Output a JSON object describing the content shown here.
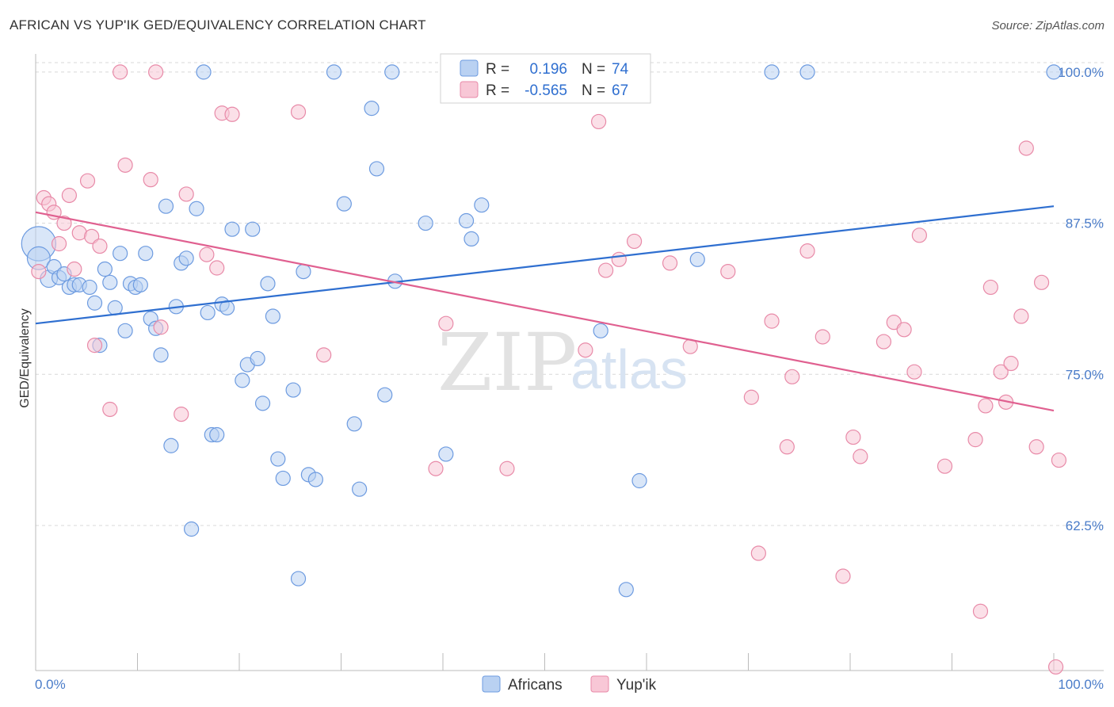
{
  "title": "AFRICAN VS YUP'IK GED/EQUIVALENCY CORRELATION CHART",
  "source": "Source: ZipAtlas.com",
  "watermark": {
    "zip": "ZIP",
    "atlas": "atlas"
  },
  "colors": {
    "africans_fill": "#b9d1f2",
    "africans_stroke": "#6d9be0",
    "africans_line": "#2f6fd0",
    "yupik_fill": "#f8c7d6",
    "yupik_stroke": "#e88aa8",
    "yupik_line": "#e06090",
    "grid": "#d8d8d8",
    "axis_label": "#4a7cc9"
  },
  "legend": {
    "rows": [
      {
        "r_label": "R =",
        "r_value": "0.196",
        "n_label": "N =",
        "n_value": "74"
      },
      {
        "r_label": "R =",
        "r_value": "-0.565",
        "n_label": "N =",
        "n_value": "67"
      }
    ]
  },
  "chart_data": {
    "type": "scatter",
    "ylabel": "GED/Equivalency",
    "xlim": [
      0,
      100
    ],
    "ylim": [
      50.5,
      101.5
    ],
    "x_tick_labels": [
      "0.0%",
      "100.0%"
    ],
    "y_ticks": [
      62.5,
      75.0,
      87.5,
      100.0
    ],
    "y_tick_labels": [
      "62.5%",
      "75.0%",
      "87.5%",
      "100.0%"
    ],
    "legend_position": "bottom",
    "grid": true,
    "series": [
      {
        "name": "Africans",
        "trend": {
          "x": [
            0,
            100
          ],
          "y": [
            79.2,
            88.9
          ]
        },
        "points": [
          [
            0.3,
            85.8,
            2.4
          ],
          [
            0.3,
            84.6,
            1.6
          ],
          [
            1.3,
            82.9,
            1.2
          ],
          [
            1.8,
            83.9,
            1
          ],
          [
            2.3,
            83.0,
            1
          ],
          [
            2.8,
            83.3,
            1
          ],
          [
            3.3,
            82.2,
            1
          ],
          [
            3.8,
            82.4,
            1
          ],
          [
            4.3,
            82.4,
            1
          ],
          [
            5.3,
            82.2,
            1
          ],
          [
            5.8,
            80.9,
            1
          ],
          [
            6.3,
            77.4,
            1
          ],
          [
            6.8,
            83.7,
            1
          ],
          [
            7.3,
            82.6,
            1
          ],
          [
            7.8,
            80.5,
            1
          ],
          [
            8.3,
            85.0,
            1
          ],
          [
            8.8,
            78.6,
            1
          ],
          [
            9.3,
            82.5,
            1
          ],
          [
            9.8,
            82.2,
            1
          ],
          [
            10.3,
            82.4,
            1
          ],
          [
            10.8,
            85.0,
            1
          ],
          [
            11.3,
            79.6,
            1
          ],
          [
            11.8,
            78.8,
            1
          ],
          [
            12.3,
            76.6,
            1
          ],
          [
            12.8,
            88.9,
            1
          ],
          [
            13.3,
            69.1,
            1
          ],
          [
            13.8,
            80.6,
            1
          ],
          [
            14.3,
            84.2,
            1
          ],
          [
            14.8,
            84.6,
            1
          ],
          [
            15.3,
            62.2,
            1
          ],
          [
            15.8,
            88.7,
            1
          ],
          [
            16.5,
            100.0,
            1
          ],
          [
            16.9,
            80.1,
            1
          ],
          [
            17.3,
            70.0,
            1
          ],
          [
            17.8,
            70.0,
            1
          ],
          [
            18.3,
            80.8,
            1
          ],
          [
            18.8,
            80.5,
            1
          ],
          [
            19.3,
            87.0,
            1
          ],
          [
            20.3,
            74.5,
            1
          ],
          [
            20.8,
            75.8,
            1
          ],
          [
            21.3,
            87.0,
            1
          ],
          [
            21.8,
            76.3,
            1
          ],
          [
            22.3,
            72.6,
            1
          ],
          [
            22.8,
            82.5,
            1
          ],
          [
            23.3,
            79.8,
            1
          ],
          [
            23.8,
            68.0,
            1
          ],
          [
            24.3,
            66.4,
            1
          ],
          [
            25.3,
            73.7,
            1
          ],
          [
            25.8,
            58.1,
            1
          ],
          [
            26.3,
            83.5,
            1
          ],
          [
            26.8,
            66.7,
            1
          ],
          [
            27.5,
            66.3,
            1
          ],
          [
            29.3,
            100.0,
            1
          ],
          [
            30.3,
            89.1,
            1
          ],
          [
            31.3,
            70.9,
            1
          ],
          [
            31.8,
            65.5,
            1
          ],
          [
            33.0,
            97.0,
            1
          ],
          [
            33.5,
            92.0,
            1
          ],
          [
            34.3,
            73.3,
            1
          ],
          [
            35.0,
            100.0,
            1
          ],
          [
            35.3,
            82.7,
            1
          ],
          [
            38.3,
            87.5,
            1
          ],
          [
            40.3,
            68.4,
            1
          ],
          [
            42.3,
            87.7,
            1
          ],
          [
            42.8,
            86.2,
            1
          ],
          [
            43.8,
            89.0,
            1
          ],
          [
            52.0,
            100.0,
            1
          ],
          [
            55.5,
            78.6,
            1
          ],
          [
            58.0,
            57.2,
            1
          ],
          [
            59.3,
            66.2,
            1
          ],
          [
            65.0,
            84.5,
            1
          ],
          [
            72.3,
            100.0,
            1
          ],
          [
            75.8,
            100.0,
            1
          ],
          [
            100.0,
            100.0,
            1
          ]
        ]
      },
      {
        "name": "Yup'ik",
        "trend": {
          "x": [
            0,
            100
          ],
          "y": [
            88.4,
            72.0
          ]
        },
        "points": [
          [
            0.3,
            83.5,
            1
          ],
          [
            0.8,
            89.6,
            1
          ],
          [
            1.3,
            89.1,
            1
          ],
          [
            1.8,
            88.4,
            1
          ],
          [
            2.3,
            85.8,
            1
          ],
          [
            2.8,
            87.5,
            1
          ],
          [
            3.3,
            89.8,
            1
          ],
          [
            3.8,
            83.7,
            1
          ],
          [
            4.3,
            86.7,
            1
          ],
          [
            5.1,
            91.0,
            1
          ],
          [
            5.5,
            86.4,
            1
          ],
          [
            5.8,
            77.4,
            1
          ],
          [
            6.3,
            85.6,
            1
          ],
          [
            7.3,
            72.1,
            1
          ],
          [
            8.3,
            100.0,
            1
          ],
          [
            8.8,
            92.3,
            1
          ],
          [
            11.3,
            91.1,
            1
          ],
          [
            11.8,
            100.0,
            1
          ],
          [
            12.3,
            78.9,
            1
          ],
          [
            14.3,
            71.7,
            1
          ],
          [
            14.8,
            89.9,
            1
          ],
          [
            16.8,
            84.9,
            1
          ],
          [
            17.8,
            83.8,
            1
          ],
          [
            18.3,
            96.6,
            1
          ],
          [
            19.3,
            96.5,
            1
          ],
          [
            25.8,
            96.7,
            1
          ],
          [
            28.3,
            76.6,
            1
          ],
          [
            39.3,
            67.2,
            1
          ],
          [
            40.3,
            79.2,
            1
          ],
          [
            46.3,
            67.2,
            1
          ],
          [
            54.0,
            77.0,
            1
          ],
          [
            55.3,
            95.9,
            1
          ],
          [
            56.0,
            83.6,
            1
          ],
          [
            57.3,
            84.5,
            1
          ],
          [
            58.8,
            86.0,
            1
          ],
          [
            62.3,
            84.2,
            1
          ],
          [
            64.3,
            77.3,
            1
          ],
          [
            68.0,
            83.5,
            1
          ],
          [
            70.3,
            73.1,
            1
          ],
          [
            71.0,
            60.2,
            1
          ],
          [
            72.3,
            79.4,
            1
          ],
          [
            73.8,
            69.0,
            1
          ],
          [
            74.3,
            74.8,
            1
          ],
          [
            75.8,
            85.2,
            1
          ],
          [
            77.3,
            78.1,
            1
          ],
          [
            79.3,
            58.3,
            1
          ],
          [
            80.3,
            69.8,
            1
          ],
          [
            81.0,
            68.2,
            1
          ],
          [
            83.3,
            77.7,
            1
          ],
          [
            84.3,
            79.3,
            1
          ],
          [
            85.3,
            78.7,
            1
          ],
          [
            86.3,
            75.2,
            1
          ],
          [
            86.8,
            86.5,
            1
          ],
          [
            89.3,
            67.4,
            1
          ],
          [
            92.3,
            69.6,
            1
          ],
          [
            92.8,
            55.4,
            1
          ],
          [
            93.8,
            82.2,
            1
          ],
          [
            93.3,
            72.4,
            1
          ],
          [
            94.8,
            75.2,
            1
          ],
          [
            95.3,
            72.7,
            1
          ],
          [
            95.8,
            75.9,
            1
          ],
          [
            96.8,
            79.8,
            1
          ],
          [
            97.3,
            93.7,
            1
          ],
          [
            98.3,
            69.0,
            1
          ],
          [
            98.8,
            82.6,
            1
          ],
          [
            100.5,
            67.9,
            1
          ],
          [
            100.2,
            50.8,
            1
          ]
        ]
      }
    ]
  }
}
